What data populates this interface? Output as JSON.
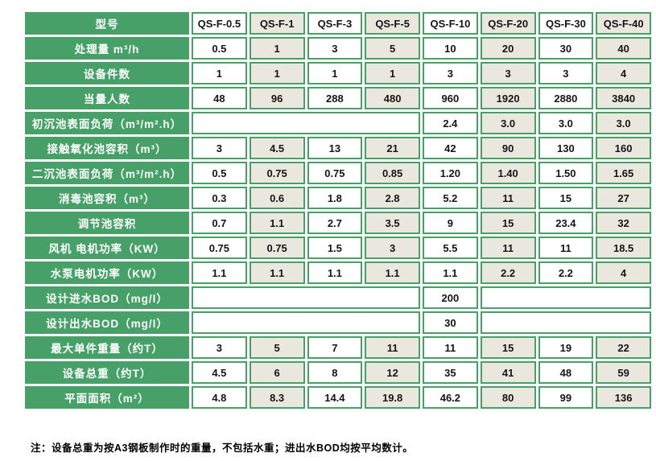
{
  "colors": {
    "green": "#47a067",
    "cell_gray": "#e9e7de",
    "cell_white": "#ffffff",
    "text": "#151515",
    "label_text": "#ffffff",
    "page_bg": "#ffffff"
  },
  "table": {
    "header": {
      "label": "型号",
      "models": [
        "QS-F-0.5",
        "QS-F-1",
        "QS-F-3",
        "QS-F-5",
        "QS-F-10",
        "QS-F-20",
        "QS-F-30",
        "QS-F-40"
      ]
    },
    "rows": [
      {
        "label": "处理量 m³/h",
        "cells": [
          "0.5",
          "1",
          "3",
          "5",
          "10",
          "20",
          "30",
          "40"
        ]
      },
      {
        "label": "设备件数",
        "cells": [
          "1",
          "1",
          "1",
          "1",
          "3",
          "3",
          "3",
          "4"
        ]
      },
      {
        "label": "当量人数",
        "cells": [
          "48",
          "96",
          "288",
          "480",
          "960",
          "1920",
          "2880",
          "3840"
        ]
      },
      {
        "label": "初沉池表面负荷（m³/m².h）",
        "cells": [
          {
            "v": "",
            "span": 4
          },
          "2.4",
          "3.0",
          "3.0",
          "3.0"
        ]
      },
      {
        "label": "接触氧化池容积（m³）",
        "cells": [
          "3",
          "4.5",
          "13",
          "21",
          "42",
          "90",
          "130",
          "160"
        ]
      },
      {
        "label": "二沉池表面负荷（m³/m².h）",
        "cells": [
          "0.5",
          "0.75",
          "0.75",
          "0.85",
          "1.20",
          "1.40",
          "1.50",
          "1.65"
        ]
      },
      {
        "label": "消毒池容积（m³）",
        "cells": [
          "0.3",
          "0.6",
          "1.8",
          "2.8",
          "5.2",
          "11",
          "15",
          "27"
        ]
      },
      {
        "label": "调节池容积",
        "cells": [
          "0.7",
          "1.1",
          "2.7",
          "3.5",
          "9",
          "15",
          "23.4",
          "32"
        ]
      },
      {
        "label": "风机 电机功率（KW）",
        "cells": [
          "0.75",
          "0.75",
          "1.5",
          "3",
          "5.5",
          "11",
          "11",
          "18.5"
        ]
      },
      {
        "label": "水泵电机功率（KW）",
        "cells": [
          "1.1",
          "1.1",
          "1.1",
          "1.1",
          "1.1",
          "2.2",
          "2.2",
          "4"
        ]
      },
      {
        "label": "设计进水BOD（mg/l）",
        "cells": [
          {
            "v": "",
            "span": 4
          },
          "200",
          {
            "v": "",
            "span": 3
          }
        ]
      },
      {
        "label": "设计出水BOD（mg/l）",
        "cells": [
          {
            "v": "",
            "span": 4
          },
          "30",
          {
            "v": "",
            "span": 3
          }
        ]
      },
      {
        "label": "最大单件重量（约T）",
        "cells": [
          "3",
          "5",
          "7",
          "11",
          "11",
          "15",
          "19",
          "22"
        ]
      },
      {
        "label": "设备总重（约T）",
        "cells": [
          "4.5",
          "6",
          "8",
          "12",
          "35",
          "41",
          "48",
          "59"
        ]
      },
      {
        "label": "平面面积（m²）",
        "cells": [
          "4.8",
          "8.3",
          "14.4",
          "19.8",
          "46.2",
          "80",
          "99",
          "136"
        ]
      }
    ]
  },
  "footnote": "注：设备总重为按A3钢板制作时的重量，不包括水重；进出水BOD均按平均数计。"
}
